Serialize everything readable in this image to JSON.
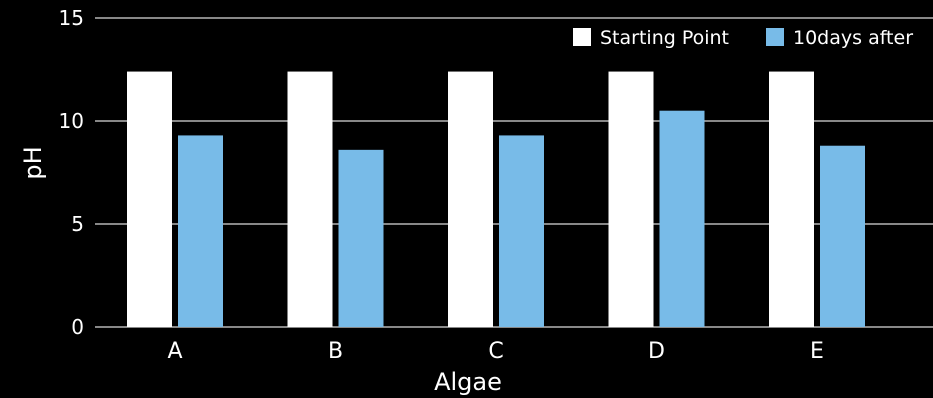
{
  "chart_data": {
    "type": "bar",
    "title": "",
    "xlabel": "Algae",
    "ylabel": "pH",
    "categories": [
      "A",
      "B",
      "C",
      "D",
      "E"
    ],
    "ylim": [
      0,
      15
    ],
    "yticks": [
      0,
      5,
      10,
      15
    ],
    "grid": true,
    "legend_position": "top-right",
    "series": [
      {
        "name": "Starting Point",
        "color": "#ffffff",
        "values": [
          12.4,
          12.4,
          12.4,
          12.4,
          12.4
        ]
      },
      {
        "name": "10days after",
        "color": "#78bbe8",
        "values": [
          9.3,
          8.6,
          9.3,
          10.5,
          8.8
        ]
      }
    ]
  },
  "colors": {
    "background": "#000000",
    "text": "#ffffff",
    "gridline": "#d9d9d9"
  }
}
